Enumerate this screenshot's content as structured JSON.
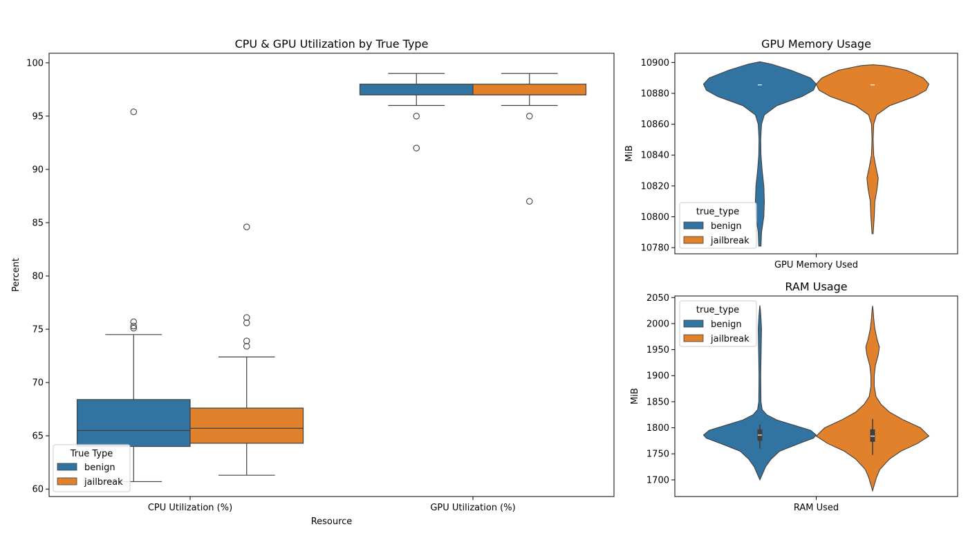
{
  "colors": {
    "benign": "#3274a1",
    "jailbreak": "#e1812c",
    "edge": "#3f3f3f"
  },
  "chart_data": [
    {
      "type": "box",
      "title": "CPU & GPU Utilization by True Type",
      "xlabel": "Resource",
      "ylabel": "Percent",
      "ylim": [
        59.3,
        100.9
      ],
      "yticks": [
        60,
        65,
        70,
        75,
        80,
        85,
        90,
        95,
        100
      ],
      "categories": [
        "CPU Utilization (%)",
        "GPU Utilization (%)"
      ],
      "legend": {
        "title": "True Type",
        "entries": [
          "benign",
          "jailbreak"
        ],
        "position": "lower-left"
      },
      "series": [
        {
          "name": "benign",
          "boxes": [
            {
              "q1": 64.0,
              "median": 65.5,
              "q3": 68.4,
              "whisker_low": 60.7,
              "whisker_high": 74.5,
              "outliers": [
                75.1,
                75.3,
                75.7,
                95.4
              ]
            },
            {
              "q1": 97.0,
              "median": 97.0,
              "q3": 98.0,
              "whisker_low": 96.0,
              "whisker_high": 99.0,
              "outliers": [
                95.0,
                92.0
              ]
            }
          ]
        },
        {
          "name": "jailbreak",
          "boxes": [
            {
              "q1": 64.3,
              "median": 65.7,
              "q3": 67.6,
              "whisker_low": 61.3,
              "whisker_high": 72.4,
              "outliers": [
                73.4,
                73.9,
                75.6,
                76.1,
                84.6
              ]
            },
            {
              "q1": 97.0,
              "median": 97.0,
              "q3": 98.0,
              "whisker_low": 96.0,
              "whisker_high": 99.0,
              "outliers": [
                95.0,
                87.0
              ]
            }
          ]
        }
      ]
    },
    {
      "type": "violin",
      "title": "GPU Memory Usage",
      "xlabel": "GPU Memory Used",
      "ylabel": "MiB",
      "ylim": [
        10776,
        10906
      ],
      "yticks": [
        10780,
        10800,
        10820,
        10840,
        10860,
        10880,
        10900
      ],
      "legend": {
        "title": "true_type",
        "entries": [
          "benign",
          "jailbreak"
        ],
        "position": "lower-left"
      },
      "series": [
        {
          "name": "benign",
          "median": 10885.5,
          "density": [
            [
              10781,
              0.02
            ],
            [
              10790,
              0.03
            ],
            [
              10800,
              0.07
            ],
            [
              10810,
              0.08
            ],
            [
              10820,
              0.07
            ],
            [
              10830,
              0.04
            ],
            [
              10840,
              0.02
            ],
            [
              10850,
              0.015
            ],
            [
              10860,
              0.03
            ],
            [
              10866,
              0.08
            ],
            [
              10872,
              0.3
            ],
            [
              10878,
              0.75
            ],
            [
              10882,
              0.95
            ],
            [
              10886,
              1.0
            ],
            [
              10890,
              0.9
            ],
            [
              10895,
              0.55
            ],
            [
              10899,
              0.2
            ],
            [
              10900.5,
              0.0
            ]
          ]
        },
        {
          "name": "jailbreak",
          "median": 10885.5,
          "density": [
            [
              10789,
              0.01
            ],
            [
              10800,
              0.03
            ],
            [
              10810,
              0.04
            ],
            [
              10818,
              0.08
            ],
            [
              10825,
              0.1
            ],
            [
              10832,
              0.06
            ],
            [
              10840,
              0.02
            ],
            [
              10850,
              0.01
            ],
            [
              10860,
              0.02
            ],
            [
              10866,
              0.07
            ],
            [
              10872,
              0.3
            ],
            [
              10878,
              0.75
            ],
            [
              10882,
              0.95
            ],
            [
              10886,
              1.0
            ],
            [
              10890,
              0.9
            ],
            [
              10895,
              0.6
            ],
            [
              10898,
              0.2
            ],
            [
              10898.5,
              0.0
            ]
          ]
        }
      ]
    },
    {
      "type": "violin",
      "title": "RAM Usage",
      "xlabel": "RAM Used",
      "ylabel": "MiB",
      "ylim": [
        1668,
        2053
      ],
      "yticks": [
        1700,
        1750,
        1800,
        1850,
        1900,
        1950,
        2000,
        2050
      ],
      "legend": {
        "title": "true_type",
        "entries": [
          "benign",
          "jailbreak"
        ],
        "position": "upper-left"
      },
      "series": [
        {
          "name": "benign",
          "median": 1786,
          "box": {
            "q1": 1775,
            "q3": 1797,
            "whisker_low": 1760,
            "whisker_high": 1806
          },
          "density": [
            [
              1700,
              0.0
            ],
            [
              1710,
              0.04
            ],
            [
              1725,
              0.1
            ],
            [
              1740,
              0.2
            ],
            [
              1755,
              0.35
            ],
            [
              1770,
              0.7
            ],
            [
              1780,
              0.95
            ],
            [
              1786,
              1.0
            ],
            [
              1795,
              0.9
            ],
            [
              1805,
              0.6
            ],
            [
              1815,
              0.3
            ],
            [
              1825,
              0.12
            ],
            [
              1835,
              0.04
            ],
            [
              1850,
              0.02
            ],
            [
              1900,
              0.015
            ],
            [
              1930,
              0.02
            ],
            [
              1960,
              0.025
            ],
            [
              1990,
              0.03
            ],
            [
              2010,
              0.02
            ],
            [
              2025,
              0.01
            ],
            [
              2035,
              0.0
            ]
          ]
        },
        {
          "name": "jailbreak",
          "median": 1784,
          "box": {
            "q1": 1773,
            "q3": 1797,
            "whisker_low": 1748,
            "whisker_high": 1817
          },
          "density": [
            [
              1679,
              0.0
            ],
            [
              1690,
              0.03
            ],
            [
              1705,
              0.07
            ],
            [
              1720,
              0.13
            ],
            [
              1740,
              0.3
            ],
            [
              1755,
              0.5
            ],
            [
              1770,
              0.8
            ],
            [
              1784,
              1.0
            ],
            [
              1800,
              0.85
            ],
            [
              1815,
              0.55
            ],
            [
              1830,
              0.3
            ],
            [
              1845,
              0.15
            ],
            [
              1860,
              0.06
            ],
            [
              1880,
              0.03
            ],
            [
              1900,
              0.03
            ],
            [
              1920,
              0.05
            ],
            [
              1940,
              0.1
            ],
            [
              1955,
              0.12
            ],
            [
              1970,
              0.08
            ],
            [
              1990,
              0.04
            ],
            [
              2010,
              0.02
            ],
            [
              2025,
              0.01
            ],
            [
              2034,
              0.0
            ]
          ]
        }
      ]
    }
  ]
}
